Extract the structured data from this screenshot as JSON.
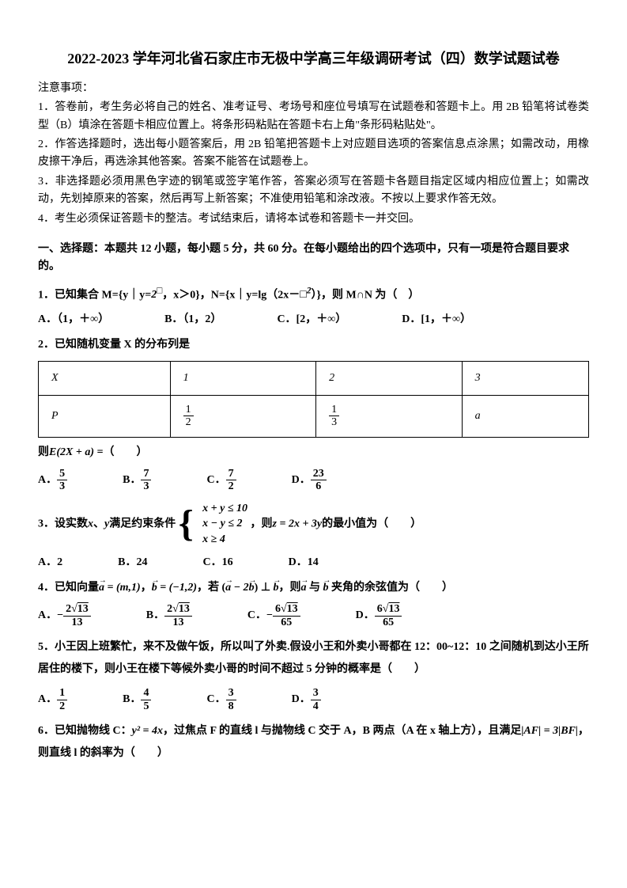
{
  "title": "2022-2023 学年河北省石家庄市无极中学高三年级调研考试（四）数学试题试卷",
  "notice_header": "注意事项：",
  "notices": [
    "1．答卷前，考生务必将自己的姓名、准考证号、考场号和座位号填写在试题卷和答题卡上。用 2B 铅笔将试卷类型（B）填涂在答题卡相应位置上。将条形码粘贴在答题卡右上角\"条形码粘贴处\"。",
    "2．作答选择题时，选出每小题答案后，用 2B 铅笔把答题卡上对应题目选项的答案信息点涂黑；如需改动，用橡皮擦干净后，再选涂其他答案。答案不能答在试题卷上。",
    "3．非选择题必须用黑色字迹的钢笔或签字笔作答，答案必须写在答题卡各题目指定区域内相应位置上；如需改动，先划掉原来的答案，然后再写上新答案；不准使用铅笔和涂改液。不按以上要求作答无效。",
    "4．考生必须保证答题卡的整洁。考试结束后，请将本试卷和答题卡一并交回。"
  ],
  "section1_header": "一、选择题：本题共 12 小题，每小题 5 分，共 60 分。在每小题给出的四个选项中，只有一项是符合题目要求的。",
  "q1": {
    "text_pre": "1．已知集合 M={y｜y=",
    "text_mid": "，x＞0}，N={x｜y=lg（2x－",
    "text_post": "）}，则 M∩N 为（　）",
    "options": [
      "A．（1，＋∞）",
      "B．（1，2）",
      "C．[2，＋∞）",
      "D．[1，＋∞）"
    ]
  },
  "q2": {
    "text": "2．已知随机变量 X 的分布列是",
    "table": {
      "row1": [
        "X",
        "1",
        "2",
        "3"
      ],
      "row2_label": "P",
      "row2_vals": [
        [
          "1",
          "2"
        ],
        [
          "1",
          "3"
        ],
        "a"
      ]
    },
    "then_text": "则",
    "expr": "E(2X + a) =",
    "paren": "（　　）",
    "options_label": [
      "A．",
      "B．",
      "C．",
      "D．"
    ],
    "options_frac": [
      [
        "5",
        "3"
      ],
      [
        "7",
        "3"
      ],
      [
        "7",
        "2"
      ],
      [
        "23",
        "6"
      ]
    ]
  },
  "q3": {
    "text_pre": "3．设实数",
    "text_mid1": "、",
    "text_mid2": "满足约束条件",
    "text_post1": "，则",
    "text_post2": "的最小值为（　　）",
    "constraints": [
      "x + y ≤ 10",
      "x − y ≤ 2",
      "x ≥ 4"
    ],
    "z_expr": "z = 2x + 3y",
    "options": [
      "A．2",
      "B．24",
      "C．16",
      "D．14"
    ]
  },
  "q4": {
    "text_pre": "4．已知向量",
    "a_eq": " = (m,1)",
    "b_eq": " = (−1,2)",
    "text_mid": "，若 (",
    "perp_expr": " − 2",
    "text_mid2": ") ⊥ ",
    "text_post": "，则",
    "text_post2": " 与 ",
    "text_post3": " 夹角的余弦值为（　　）",
    "options_label": [
      "A．",
      "B．",
      "C．",
      "D．"
    ],
    "options_sign": [
      "−",
      "",
      "−",
      ""
    ],
    "options_num_coef": [
      "2",
      "2",
      "6",
      "6"
    ],
    "options_sqrt": [
      "13",
      "13",
      "13",
      "13"
    ],
    "options_den": [
      "13",
      "13",
      "65",
      "65"
    ]
  },
  "q5": {
    "text": "5．小王因上班繁忙，来不及做午饭，所以叫了外卖.假设小王和外卖小哥都在 12：00~12：10 之间随机到达小王所居住的楼下，则小王在楼下等候外卖小哥的时间不超过 5 分钟的概率是（　　）",
    "options_label": [
      "A．",
      "B．",
      "C．",
      "D．"
    ],
    "options_frac": [
      [
        "1",
        "2"
      ],
      [
        "4",
        "5"
      ],
      [
        "3",
        "8"
      ],
      [
        "3",
        "4"
      ]
    ]
  },
  "q6": {
    "text_pre": "6．已知抛物线 C：",
    "y2_expr": "y² = 4x",
    "text_mid": "，过焦点 F 的直线 l 与抛物线 C 交于 A，B 两点（A 在 x 轴上方），且满足",
    "af_expr": "|AF| = 3|BF|",
    "text_post": "，则直线 l 的斜率为（　　）"
  }
}
